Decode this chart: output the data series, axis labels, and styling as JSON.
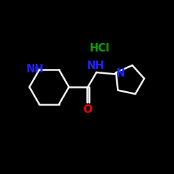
{
  "background_color": "#000000",
  "bond_color": "#ffffff",
  "nh_color": "#2222ff",
  "n_color": "#2222ff",
  "o_color": "#ff0000",
  "hcl_color": "#00aa00",
  "bond_width": 1.8,
  "font_size_atoms": 11,
  "font_size_hcl": 11,
  "hcl_text": "HCl",
  "nh_piperidine": "NH",
  "nh_amide": "NH",
  "n_pyrrolidine": "N",
  "o_text": "O",
  "figsize": [
    2.5,
    2.5
  ],
  "dpi": 100
}
